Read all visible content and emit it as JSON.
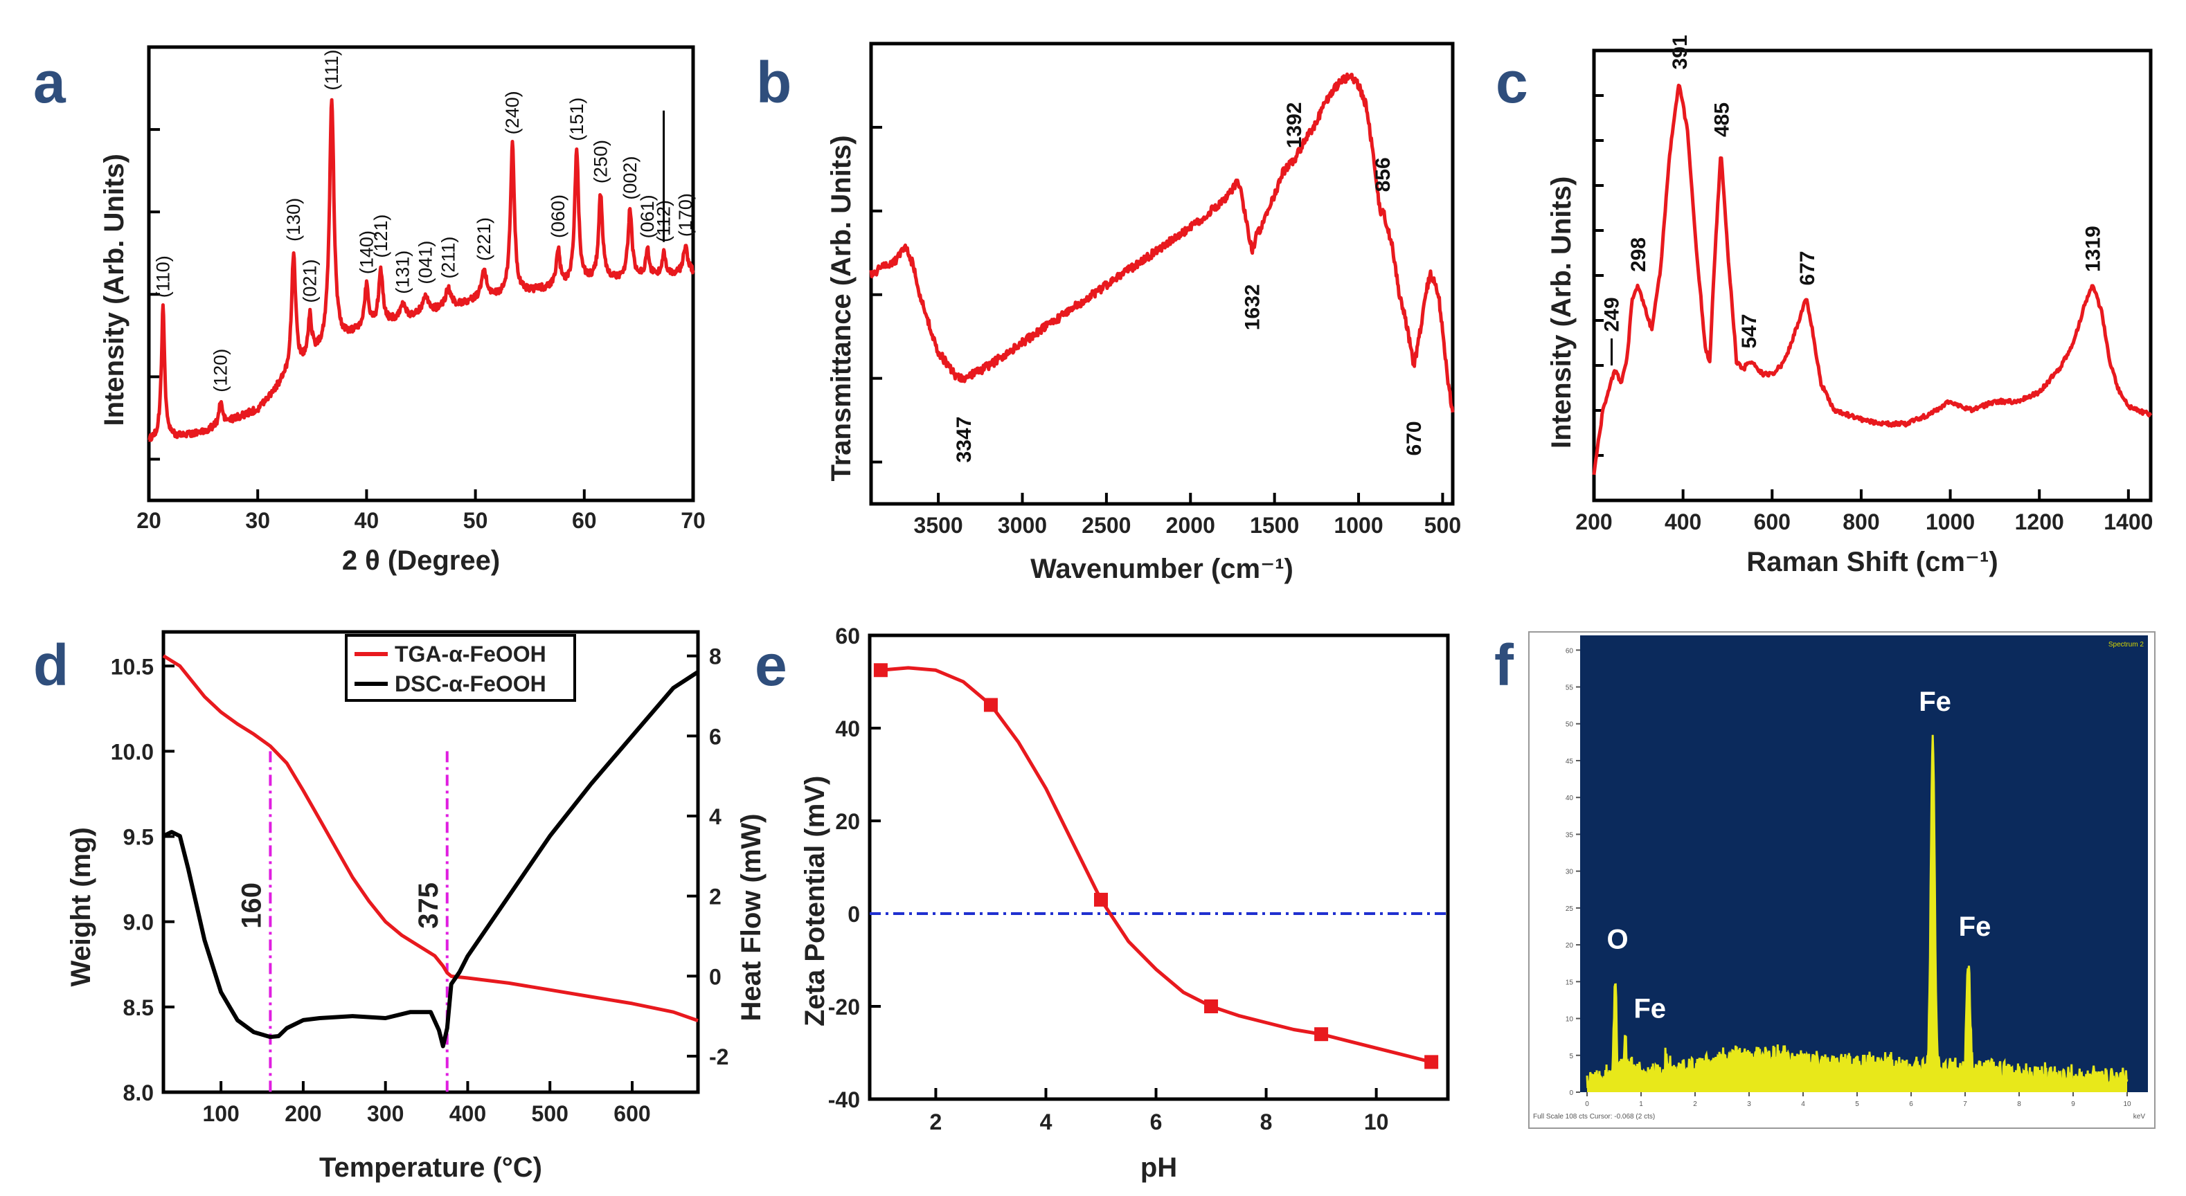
{
  "panel_labels": [
    "a",
    "b",
    "c",
    "d",
    "e",
    "f"
  ],
  "chart_data": [
    {
      "id": "a",
      "type": "line",
      "title": "",
      "xlabel": "2 θ (Degree)",
      "ylabel": "Intensity (Arb. Units)",
      "xlim": [
        20,
        70
      ],
      "xticks": [
        20,
        30,
        40,
        50,
        60,
        70
      ],
      "ylim": [
        0,
        1
      ],
      "baseline": [
        [
          20,
          0.13
        ],
        [
          25,
          0.15
        ],
        [
          30,
          0.2
        ],
        [
          33,
          0.28
        ],
        [
          36,
          0.33
        ],
        [
          40,
          0.38
        ],
        [
          45,
          0.41
        ],
        [
          50,
          0.44
        ],
        [
          55,
          0.46
        ],
        [
          60,
          0.48
        ],
        [
          65,
          0.49
        ],
        [
          70,
          0.5
        ]
      ],
      "peaks": [
        {
          "x": 21.3,
          "h": 0.29,
          "w": 0.18,
          "label": "(110)"
        },
        {
          "x": 26.6,
          "h": 0.05,
          "w": 0.2,
          "label": "(120)"
        },
        {
          "x": 33.3,
          "h": 0.26,
          "w": 0.22,
          "label": "(130)"
        },
        {
          "x": 34.8,
          "h": 0.09,
          "w": 0.2,
          "label": "(021)"
        },
        {
          "x": 36.8,
          "h": 0.54,
          "w": 0.25,
          "label": "(111)"
        },
        {
          "x": 40.0,
          "h": 0.09,
          "w": 0.22,
          "label": "(140)"
        },
        {
          "x": 41.3,
          "h": 0.12,
          "w": 0.22,
          "label": "(121)"
        },
        {
          "x": 43.3,
          "h": 0.03,
          "w": 0.3,
          "label": "(131)"
        },
        {
          "x": 45.4,
          "h": 0.04,
          "w": 0.3,
          "label": "(041)"
        },
        {
          "x": 47.5,
          "h": 0.04,
          "w": 0.3,
          "label": "(211)"
        },
        {
          "x": 50.8,
          "h": 0.06,
          "w": 0.3,
          "label": "(221)"
        },
        {
          "x": 53.4,
          "h": 0.33,
          "w": 0.22,
          "label": "(240)"
        },
        {
          "x": 57.6,
          "h": 0.08,
          "w": 0.2,
          "label": "(060)"
        },
        {
          "x": 59.3,
          "h": 0.29,
          "w": 0.22,
          "label": "(151)"
        },
        {
          "x": 61.5,
          "h": 0.19,
          "w": 0.22,
          "label": "(250)"
        },
        {
          "x": 64.2,
          "h": 0.15,
          "w": 0.22,
          "label": "(002)"
        },
        {
          "x": 65.8,
          "h": 0.06,
          "w": 0.2,
          "label": "(061)"
        },
        {
          "x": 67.3,
          "h": 0.05,
          "w": 0.2,
          "label": "(112)"
        },
        {
          "x": 69.3,
          "h": 0.06,
          "w": 0.25,
          "label": "(170)"
        }
      ]
    },
    {
      "id": "b",
      "type": "line",
      "title": "",
      "xlabel": "Wavenumber (cm⁻¹)",
      "ylabel": "Transmittance (Arb. Units)",
      "xlim": [
        3900,
        440
      ],
      "xticks": [
        3500,
        3000,
        2500,
        2000,
        1500,
        1000,
        500
      ],
      "xtick_labels": [
        "3500",
        "3000",
        "2500",
        "2000",
        "1500",
        "1000",
        "500"
      ],
      "ylim": [
        0,
        1
      ],
      "x": [
        3900,
        3750,
        3700,
        3650,
        3600,
        3500,
        3400,
        3347,
        3300,
        3200,
        3000,
        2800,
        2600,
        2400,
        2200,
        2000,
        1900,
        1800,
        1720,
        1700,
        1680,
        1650,
        1632,
        1610,
        1580,
        1550,
        1500,
        1450,
        1400,
        1392,
        1350,
        1300,
        1250,
        1200,
        1150,
        1100,
        1050,
        1000,
        950,
        900,
        870,
        856,
        830,
        800,
        760,
        720,
        690,
        670,
        640,
        600,
        570,
        540,
        520,
        500,
        470,
        440
      ],
      "y": [
        0.5,
        0.53,
        0.56,
        0.52,
        0.44,
        0.33,
        0.28,
        0.27,
        0.28,
        0.3,
        0.35,
        0.4,
        0.45,
        0.5,
        0.55,
        0.6,
        0.63,
        0.66,
        0.7,
        0.68,
        0.64,
        0.58,
        0.55,
        0.58,
        0.6,
        0.63,
        0.67,
        0.72,
        0.74,
        0.74,
        0.77,
        0.8,
        0.83,
        0.87,
        0.9,
        0.92,
        0.93,
        0.91,
        0.86,
        0.72,
        0.63,
        0.64,
        0.6,
        0.56,
        0.46,
        0.4,
        0.34,
        0.3,
        0.36,
        0.46,
        0.5,
        0.47,
        0.44,
        0.38,
        0.27,
        0.2
      ],
      "annotations": [
        {
          "x": 3347,
          "text": "3347"
        },
        {
          "x": 1632,
          "text": "1632"
        },
        {
          "x": 1392,
          "text": "1392"
        },
        {
          "x": 856,
          "text": "856"
        },
        {
          "x": 670,
          "text": "670"
        }
      ]
    },
    {
      "id": "c",
      "type": "line",
      "title": "",
      "xlabel": "Raman Shift (cm⁻¹)",
      "ylabel": "Intensity (Arb. Units)",
      "xlim": [
        200,
        1450
      ],
      "xticks": [
        200,
        400,
        600,
        800,
        1000,
        1200,
        1400
      ],
      "ylim": [
        0,
        1
      ],
      "x": [
        200,
        220,
        240,
        249,
        260,
        275,
        285,
        298,
        310,
        330,
        350,
        370,
        391,
        410,
        430,
        450,
        460,
        470,
        485,
        500,
        520,
        535,
        547,
        560,
        580,
        600,
        620,
        640,
        660,
        677,
        690,
        710,
        740,
        770,
        800,
        850,
        900,
        950,
        1000,
        1050,
        1100,
        1150,
        1200,
        1250,
        1280,
        1300,
        1319,
        1340,
        1360,
        1380,
        1400,
        1420,
        1450
      ],
      "y": [
        0.06,
        0.2,
        0.27,
        0.29,
        0.26,
        0.32,
        0.44,
        0.48,
        0.44,
        0.38,
        0.52,
        0.77,
        0.93,
        0.82,
        0.56,
        0.34,
        0.31,
        0.52,
        0.78,
        0.56,
        0.31,
        0.29,
        0.31,
        0.3,
        0.28,
        0.28,
        0.3,
        0.34,
        0.4,
        0.45,
        0.38,
        0.26,
        0.2,
        0.19,
        0.18,
        0.17,
        0.17,
        0.19,
        0.22,
        0.2,
        0.22,
        0.22,
        0.24,
        0.3,
        0.36,
        0.43,
        0.48,
        0.42,
        0.3,
        0.24,
        0.21,
        0.2,
        0.19
      ],
      "annotations": [
        {
          "x": 249,
          "text": "249"
        },
        {
          "x": 298,
          "text": "298"
        },
        {
          "x": 391,
          "text": "391"
        },
        {
          "x": 485,
          "text": "485"
        },
        {
          "x": 547,
          "text": "547"
        },
        {
          "x": 677,
          "text": "677"
        },
        {
          "x": 1319,
          "text": "1319"
        }
      ]
    },
    {
      "id": "d",
      "type": "line",
      "title": "",
      "xlabel": "Temperature (°C)",
      "ylabel": "Weight (mg)",
      "ylabel_right": "Heat Flow (mW)",
      "xlim": [
        30,
        680
      ],
      "xticks": [
        100,
        200,
        300,
        400,
        500,
        600
      ],
      "ylim": [
        8.0,
        10.7
      ],
      "yticks": [
        8.0,
        8.5,
        9.0,
        9.5,
        10.0,
        10.5
      ],
      "ytick_labels": [
        "8.0",
        "8.5",
        "9.0",
        "9.5",
        "10.0",
        "10.5"
      ],
      "ylim_right": [
        -2.9,
        8.6
      ],
      "yticks_right": [
        -2,
        0,
        2,
        4,
        6,
        8
      ],
      "legend": [
        "TGA-α-FeOOH",
        "DSC-α-FeOOH"
      ],
      "legend_position": "top-center",
      "series": [
        {
          "name": "TGA-α-FeOOH",
          "axis": "left",
          "x": [
            30,
            50,
            80,
            100,
            120,
            140,
            160,
            180,
            200,
            220,
            240,
            260,
            280,
            300,
            320,
            340,
            360,
            370,
            375,
            380,
            400,
            450,
            500,
            550,
            600,
            650,
            680
          ],
          "y": [
            10.56,
            10.5,
            10.32,
            10.23,
            10.16,
            10.1,
            10.03,
            9.93,
            9.77,
            9.6,
            9.43,
            9.26,
            9.12,
            9.0,
            8.92,
            8.86,
            8.8,
            8.74,
            8.7,
            8.68,
            8.67,
            8.64,
            8.6,
            8.56,
            8.52,
            8.47,
            8.42
          ]
        },
        {
          "name": "DSC-α-FeOOH",
          "axis": "right",
          "x": [
            30,
            40,
            50,
            60,
            80,
            100,
            120,
            140,
            160,
            170,
            180,
            200,
            220,
            260,
            300,
            330,
            355,
            365,
            370,
            375,
            380,
            390,
            400,
            450,
            500,
            550,
            600,
            650,
            680
          ],
          "y": [
            3.5,
            3.6,
            3.5,
            2.7,
            0.9,
            -0.4,
            -1.1,
            -1.4,
            -1.52,
            -1.5,
            -1.3,
            -1.1,
            -1.05,
            -1.0,
            -1.05,
            -0.9,
            -0.9,
            -1.35,
            -1.75,
            -1.3,
            -0.2,
            0.1,
            0.5,
            2.0,
            3.5,
            4.8,
            6.0,
            7.2,
            7.6
          ]
        }
      ],
      "markers": [
        {
          "x": 160,
          "text": "160"
        },
        {
          "x": 375,
          "text": "375"
        }
      ]
    },
    {
      "id": "e",
      "type": "line",
      "title": "",
      "xlabel": "pH",
      "ylabel": "Zeta Potential (mV)",
      "xlim": [
        0.8,
        11.3
      ],
      "xticks": [
        2,
        4,
        6,
        8,
        10
      ],
      "ylim": [
        -40,
        60
      ],
      "yticks": [
        -40,
        -20,
        0,
        20,
        40,
        60
      ],
      "points_x": [
        1,
        3,
        5,
        7,
        9,
        11
      ],
      "points_y": [
        52.5,
        45,
        3,
        -20,
        -26,
        -32
      ],
      "smooth_x": [
        1,
        1.5,
        2,
        2.5,
        3,
        3.5,
        4,
        4.5,
        5,
        5.5,
        6,
        6.5,
        7,
        7.5,
        8,
        8.5,
        9,
        9.5,
        10,
        10.5,
        11
      ],
      "smooth_y": [
        52.5,
        53,
        52.5,
        50,
        45,
        37,
        27,
        15,
        3,
        -6,
        -12,
        -17,
        -20,
        -22,
        -23.5,
        -25,
        -26,
        -27.5,
        -29,
        -30.5,
        -32
      ],
      "reference_line": 0
    },
    {
      "id": "f",
      "type": "line",
      "title": "",
      "xlim": [
        0,
        10
      ],
      "ylim": [
        0,
        62
      ],
      "spectrum_label": "Spectrum 2",
      "footer_text": "Full Scale 108 cts Cursor: -0.068 (2 cts)",
      "unit_text": "keV",
      "yticks": [
        0,
        5,
        10,
        15,
        20,
        25,
        30,
        35,
        40,
        45,
        50,
        55,
        60
      ],
      "xticks": [
        0,
        1,
        2,
        3,
        4,
        5,
        6,
        7,
        8,
        9,
        10
      ],
      "peaks": [
        {
          "x": 0.52,
          "h": 13,
          "w": 0.03,
          "label": "O"
        },
        {
          "x": 0.71,
          "h": 3.5,
          "w": 0.03,
          "label": "Fe"
        },
        {
          "x": 6.4,
          "h": 45,
          "w": 0.05,
          "label": "Fe"
        },
        {
          "x": 7.06,
          "h": 15,
          "w": 0.045,
          "label": "Fe"
        }
      ],
      "background": [
        [
          0,
          0.5
        ],
        [
          0.3,
          1
        ],
        [
          0.5,
          2.5
        ],
        [
          0.8,
          3
        ],
        [
          1,
          2
        ],
        [
          1.5,
          2.5
        ],
        [
          2,
          2.5
        ],
        [
          2.5,
          4
        ],
        [
          3,
          4.5
        ],
        [
          3.5,
          4.2
        ],
        [
          4,
          3.8
        ],
        [
          5,
          3.3
        ],
        [
          6,
          3
        ],
        [
          7,
          2.5
        ],
        [
          8,
          2
        ],
        [
          9,
          1.5
        ],
        [
          10,
          1.2
        ]
      ]
    }
  ]
}
